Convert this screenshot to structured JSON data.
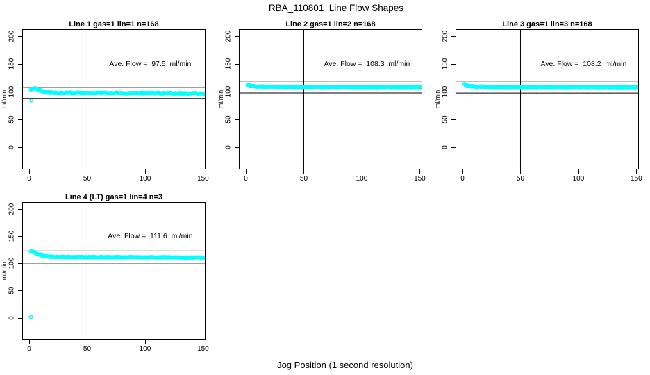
{
  "figure": {
    "title": "RBA_110801  Line Flow Shapes",
    "xlabel": "Jog Position (1 second resolution)",
    "marker_color": "#00FFFF",
    "axis_color": "#000000",
    "background_color": "#ffffff",
    "marker": "open-circle"
  },
  "chart_data": [
    {
      "type": "scatter",
      "title": "Line 1 gas=1 lin=1 n=168",
      "annotation": "Ave. Flow =  97.5  ml/min",
      "ave_flow": 97.5,
      "n": 168,
      "ylabel": "ml/min",
      "x_ticks": [
        0,
        50,
        100,
        150
      ],
      "y_ticks": [
        0,
        50,
        100,
        150,
        200
      ],
      "xlim": [
        -5.5,
        152
      ],
      "ylim": [
        -39,
        211
      ],
      "vline_x": 50,
      "ref_lines_y": [
        107.3,
        87.8
      ],
      "profile_points": [
        [
          1.5,
          103
        ],
        [
          3,
          105.5
        ],
        [
          5,
          106
        ],
        [
          8,
          103.5
        ],
        [
          12,
          100
        ],
        [
          17,
          98.3
        ],
        [
          25,
          97.6
        ],
        [
          40,
          97.4
        ],
        [
          60,
          97.4
        ],
        [
          80,
          97.3
        ],
        [
          110,
          97.2
        ],
        [
          135,
          96.8
        ],
        [
          150,
          96.5
        ]
      ],
      "outliers": [
        [
          2,
          84
        ]
      ],
      "jitter": 0.9
    },
    {
      "type": "scatter",
      "title": "Line 2 gas=1 lin=2 n=168",
      "annotation": "Ave. Flow =  108.3  ml/min",
      "ave_flow": 108.3,
      "n": 168,
      "ylabel": "ml/min",
      "x_ticks": [
        0,
        50,
        100,
        150
      ],
      "y_ticks": [
        0,
        50,
        100,
        150,
        200
      ],
      "xlim": [
        -5.5,
        152
      ],
      "ylim": [
        -39,
        211
      ],
      "vline_x": 50,
      "ref_lines_y": [
        119.1,
        97.5
      ],
      "profile_points": [
        [
          1.5,
          112
        ],
        [
          3,
          111.5
        ],
        [
          6,
          110
        ],
        [
          10,
          109.2
        ],
        [
          18,
          108.7
        ],
        [
          35,
          108.5
        ],
        [
          70,
          108.4
        ],
        [
          110,
          108.3
        ],
        [
          150,
          108.3
        ]
      ],
      "outliers": [],
      "jitter": 0.7
    },
    {
      "type": "scatter",
      "title": "Line 3 gas=1 lin=3 n=168",
      "annotation": "Ave. Flow =  108.2  ml/min",
      "ave_flow": 108.2,
      "n": 168,
      "ylabel": "ml/min",
      "x_ticks": [
        0,
        50,
        100,
        150
      ],
      "y_ticks": [
        0,
        50,
        100,
        150,
        200
      ],
      "xlim": [
        -5.5,
        152
      ],
      "ylim": [
        -39,
        211
      ],
      "vline_x": 50,
      "ref_lines_y": [
        119.0,
        97.4
      ],
      "profile_points": [
        [
          1.5,
          114
        ],
        [
          3,
          111.5
        ],
        [
          6,
          109.8
        ],
        [
          12,
          108.8
        ],
        [
          25,
          108.4
        ],
        [
          60,
          108.3
        ],
        [
          100,
          108.3
        ],
        [
          150,
          108.0
        ]
      ],
      "outliers": [],
      "jitter": 0.7
    },
    {
      "type": "scatter",
      "title": "Line 4 (LT) gas=1 lin=4 n=3",
      "annotation": "Ave. Flow =  111.6  ml/min",
      "ave_flow": 111.6,
      "n": 3,
      "ylabel": "ml/min",
      "x_ticks": [
        0,
        50,
        100,
        150
      ],
      "y_ticks": [
        0,
        50,
        100,
        150,
        200
      ],
      "xlim": [
        -5.5,
        152
      ],
      "ylim": [
        -39,
        211
      ],
      "vline_x": 50,
      "ref_lines_y": [
        122.8,
        100.4
      ],
      "profile_points": [
        [
          1.5,
          122.5
        ],
        [
          3,
          122
        ],
        [
          5,
          119.5
        ],
        [
          8,
          116.5
        ],
        [
          12,
          114
        ],
        [
          17,
          112.5
        ],
        [
          25,
          111.7
        ],
        [
          40,
          111.4
        ],
        [
          70,
          111.3
        ],
        [
          110,
          111.2
        ],
        [
          150,
          110.7
        ]
      ],
      "outliers": [
        [
          1.5,
          1.5
        ]
      ],
      "jitter": 0.7
    }
  ]
}
